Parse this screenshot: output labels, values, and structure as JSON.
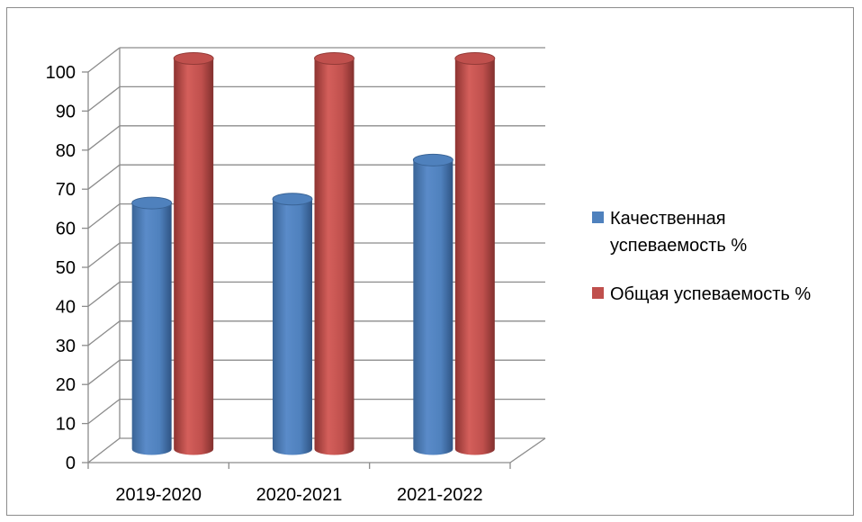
{
  "chart_data": {
    "type": "bar",
    "style": "3d-cylinder",
    "categories": [
      "2019-2020",
      "2020-2021",
      "2021-2022"
    ],
    "series": [
      {
        "name": "Качественная успеваемость  %",
        "values": [
          63,
          64,
          74
        ],
        "color": "#4f81bd"
      },
      {
        "name": "Общая успеваемость %",
        "values": [
          100,
          100,
          100
        ],
        "color": "#c0504d"
      }
    ],
    "y_ticks": [
      "0",
      "10",
      "20",
      "30",
      "40",
      "50",
      "60",
      "70",
      "80",
      "90",
      "100"
    ],
    "ylim": [
      0,
      100
    ],
    "grid": true,
    "legend_position": "right",
    "legend_lines": [
      [
        "Качественная",
        "успеваемость  %"
      ],
      [
        "Общая успеваемость %"
      ]
    ]
  }
}
